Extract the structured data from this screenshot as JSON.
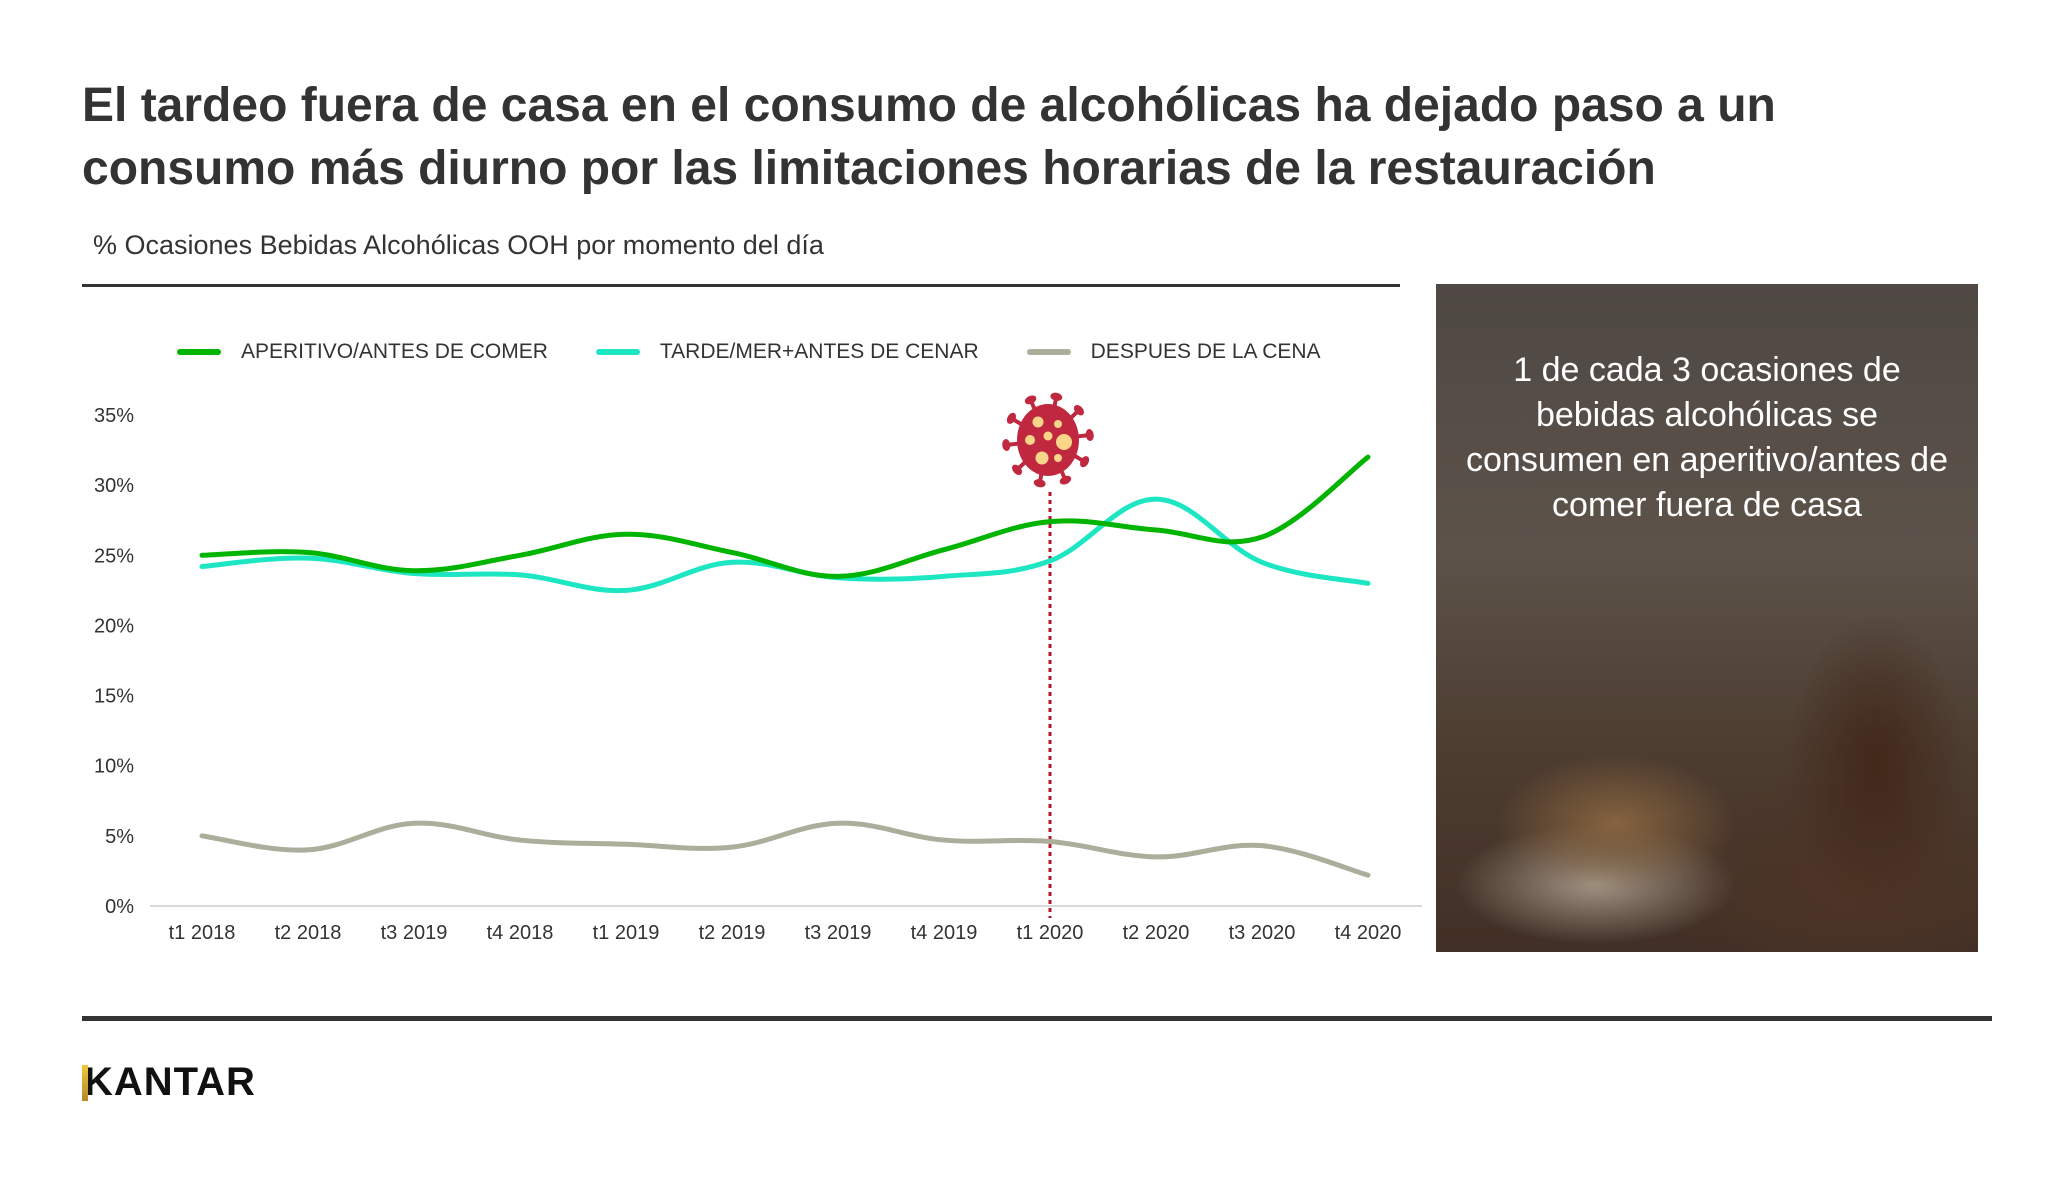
{
  "title": {
    "line1": "El tardeo fuera de casa en el consumo de alcohólicas ha dejado paso a un",
    "line2": "consumo más diurno por las limitaciones horarias de la restauración"
  },
  "subtitle": "% Ocasiones Bebidas Alcohólicas OOH por momento del día",
  "legend": [
    {
      "label": "APERITIVO/ANTES DE COMER",
      "color": "#00b400"
    },
    {
      "label": "TARDE/MER+ANTES DE CENAR",
      "color": "#1de6c3"
    },
    {
      "label": "DESPUES DE LA CENA",
      "color": "#acad9b"
    }
  ],
  "annotation": {
    "icon": "virus-icon",
    "position": "t1 2020",
    "line_color": "#b0182b",
    "icon_color": "#c0283f",
    "dot_color": "#f9d58a"
  },
  "panel": {
    "text": "1 de cada 3 ocasiones de bebidas alcohólicas se consumen en aperitivo/antes de comer fuera de casa"
  },
  "footer": {
    "logo": "KANTAR"
  },
  "chart_data": {
    "type": "line",
    "title": "% Ocasiones Bebidas Alcohólicas OOH por momento del día",
    "xlabel": "",
    "ylabel": "",
    "categories": [
      "t1 2018",
      "t2 2018",
      "t3 2019",
      "t4 2018",
      "t1 2019",
      "t2 2019",
      "t3 2019",
      "t4 2019",
      "t1 2020",
      "t2 2020",
      "t3 2020",
      "t4 2020"
    ],
    "yticks": [
      "0%",
      "5%",
      "10%",
      "15%",
      "20%",
      "25%",
      "30%",
      "35%"
    ],
    "ylim": [
      0,
      35
    ],
    "grid": false,
    "legend_position": "top",
    "series": [
      {
        "name": "APERITIVO/ANTES DE COMER",
        "color": "#00b400",
        "values": [
          25.0,
          25.2,
          23.9,
          25.0,
          26.5,
          25.2,
          23.5,
          25.4,
          27.4,
          26.8,
          26.3,
          32.0
        ]
      },
      {
        "name": "TARDE/MER+ANTES DE CENAR",
        "color": "#1de6c3",
        "values": [
          24.2,
          24.8,
          23.7,
          23.6,
          22.5,
          24.5,
          23.4,
          23.5,
          24.6,
          29.0,
          24.5,
          23.0
        ]
      },
      {
        "name": "DESPUES DE LA CENA",
        "color": "#acad9b",
        "values": [
          5.0,
          4.0,
          5.9,
          4.7,
          4.4,
          4.2,
          5.9,
          4.7,
          4.6,
          3.5,
          4.3,
          2.2
        ]
      }
    ],
    "annotations": [
      {
        "type": "vertical-dotted-line",
        "x": "t1 2020",
        "label": "COVID-19 icon"
      }
    ]
  }
}
